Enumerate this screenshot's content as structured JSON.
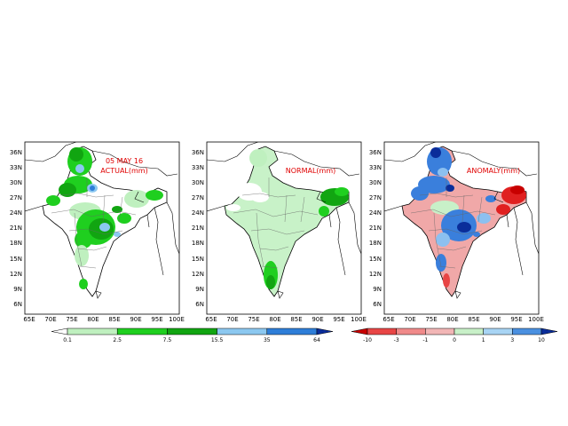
{
  "panels": [
    {
      "key": "actual",
      "title_lines": [
        "05 MAY 16",
        "ACTUAL(mm)"
      ]
    },
    {
      "key": "normal",
      "title_lines": [
        "NORMAL(mm)"
      ]
    },
    {
      "key": "anomaly",
      "title_lines": [
        "ANOMALY(mm)"
      ]
    }
  ],
  "lat_ticks": [
    "36N",
    "33N",
    "30N",
    "27N",
    "24N",
    "21N",
    "18N",
    "15N",
    "12N",
    "9N",
    "6N"
  ],
  "lon_ticks": [
    "65E",
    "70E",
    "75E",
    "80E",
    "85E",
    "90E",
    "95E",
    "100E"
  ],
  "colorbars": [
    {
      "key": "rainfall",
      "labels": [
        "0.1",
        "2.5",
        "7.5",
        "15.5",
        "35",
        "64"
      ],
      "colors": [
        "#ffffff",
        "#bff0bf",
        "#1fcf1f",
        "#11a511",
        "#8cc8f0",
        "#2e7ed8",
        "#0a2d9a"
      ]
    },
    {
      "key": "anomaly",
      "labels": [
        "-10",
        "-3",
        "-1",
        "0",
        "1",
        "3",
        "10"
      ],
      "colors": [
        "#c80000",
        "#e84545",
        "#f08a8a",
        "#f2b6b6",
        "#c8f0c8",
        "#a8d4f4",
        "#4a90e0",
        "#0a2d9a"
      ]
    }
  ],
  "colors": {
    "actual_green_light": "#bff0bf",
    "actual_green": "#1fcf1f",
    "actual_green_dark": "#11a511",
    "normal_green_light": "#c8f2c8",
    "anomaly_pink": "#f0a8a8",
    "anomaly_red": "#e02020",
    "anomaly_blue": "#3a7fdc",
    "anomaly_light_blue": "#8cc0f0",
    "title_red": "#e00000"
  }
}
